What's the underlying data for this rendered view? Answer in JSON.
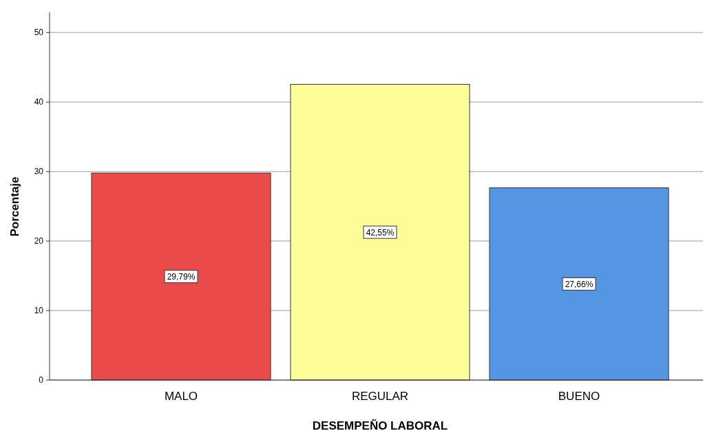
{
  "chart_data": {
    "type": "bar",
    "xlabel": "DESEMPEÑO LABORAL",
    "ylabel": "Porcentaje",
    "categories": [
      "MALO",
      "REGULAR",
      "BUENO"
    ],
    "values": [
      29.79,
      42.55,
      27.66
    ],
    "colors": [
      "#eb4a4a",
      "#fdfd98",
      "#5596e4"
    ],
    "value_labels": [
      "29,79%",
      "42,55%",
      "27,66%"
    ],
    "ylim": [
      0,
      52.9
    ],
    "yticks": [
      0,
      10,
      20,
      30,
      40,
      50
    ],
    "grid": "y"
  }
}
